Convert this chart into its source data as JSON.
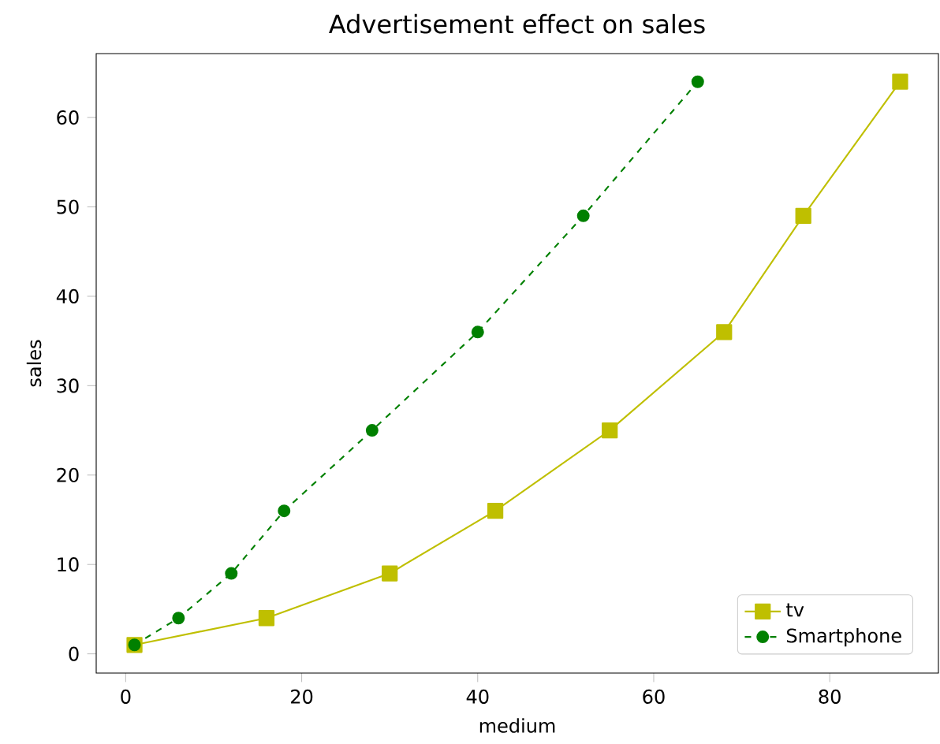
{
  "chart_data": {
    "type": "line",
    "title": "Advertisement effect on sales",
    "xlabel": "medium",
    "ylabel": "sales",
    "xlim": [
      -3.35,
      92.35
    ],
    "ylim": [
      -2.15,
      67.15
    ],
    "xticks": [
      0,
      20,
      40,
      60,
      80
    ],
    "yticks": [
      0,
      10,
      20,
      30,
      40,
      50,
      60
    ],
    "legend": "bottom right",
    "series": [
      {
        "name": "tv",
        "color": "#bfbf00",
        "marker": "square",
        "line_style": "solid",
        "x": [
          1,
          16,
          30,
          42,
          55,
          68,
          77,
          88
        ],
        "values": [
          1,
          4,
          9,
          16,
          25,
          36,
          49,
          64
        ]
      },
      {
        "name": "Smartphone",
        "color": "#008000",
        "marker": "circle",
        "line_style": "dashed",
        "x": [
          1,
          6,
          12,
          18,
          28,
          40,
          52,
          65
        ],
        "values": [
          1,
          4,
          9,
          16,
          25,
          36,
          49,
          64
        ]
      }
    ]
  }
}
